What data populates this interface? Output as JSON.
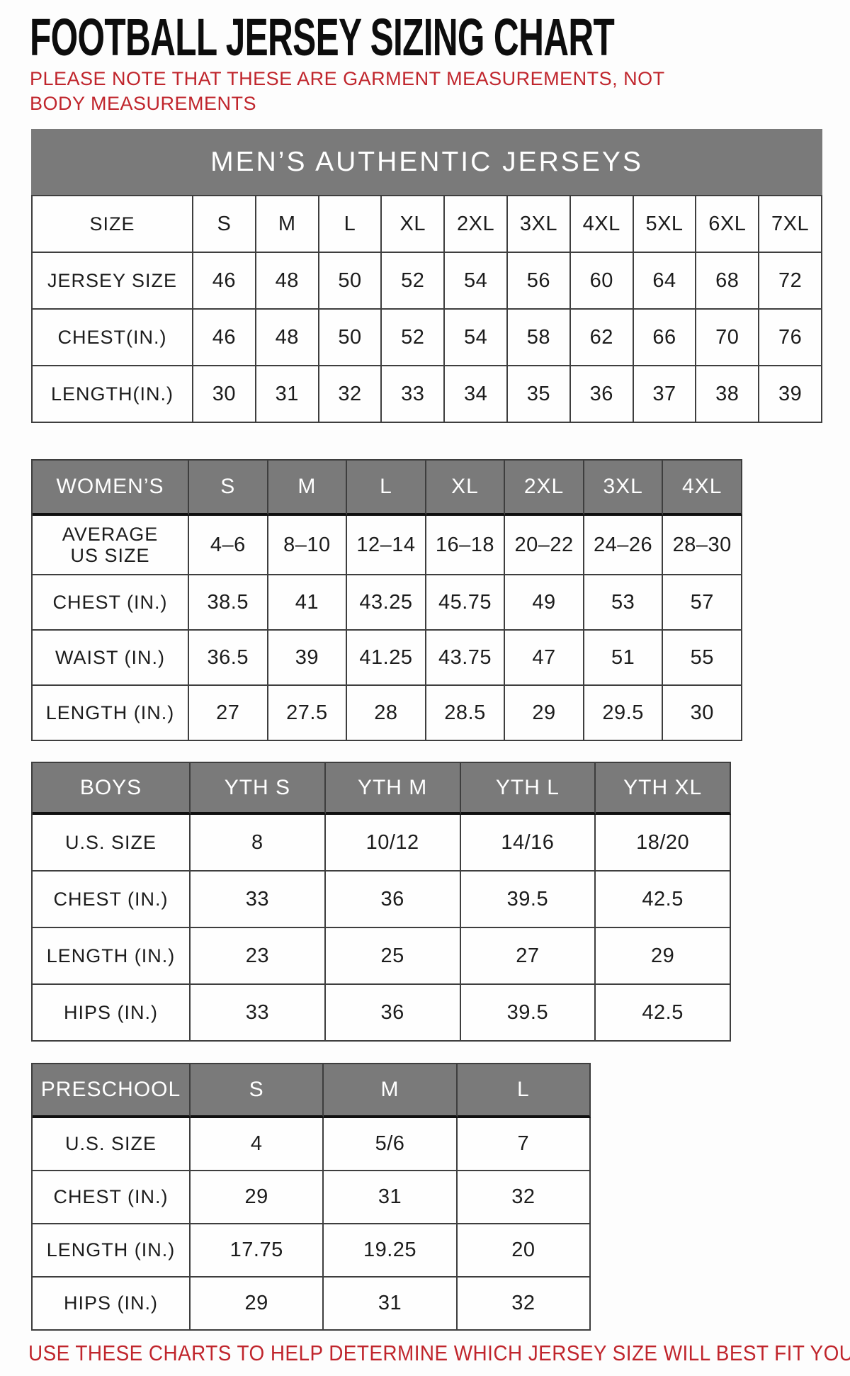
{
  "page": {
    "title": "FOOTBALL JERSEY SIZING CHART",
    "note": "PLEASE NOTE THAT THESE ARE GARMENT MEASUREMENTS, NOT BODY MEASUREMENTS",
    "footer": "USE THESE CHARTS TO HELP DETERMINE WHICH JERSEY SIZE WILL BEST FIT YOU."
  },
  "colors": {
    "accent_red": "#c0252c",
    "header_gray": "#7a7a7a",
    "border_dark": "#3e3e3e",
    "header_underline": "#101010",
    "text": "#1c1c1c"
  },
  "tables": {
    "mens": {
      "banner": "MEN’S AUTHENTIC JERSEYS",
      "rows": [
        [
          "SIZE",
          "S",
          "M",
          "L",
          "XL",
          "2XL",
          "3XL",
          "4XL",
          "5XL",
          "6XL",
          "7XL"
        ],
        [
          "JERSEY SIZE",
          "46",
          "48",
          "50",
          "52",
          "54",
          "56",
          "60",
          "64",
          "68",
          "72"
        ],
        [
          "CHEST(IN.)",
          "46",
          "48",
          "50",
          "52",
          "54",
          "58",
          "62",
          "66",
          "70",
          "76"
        ],
        [
          "LENGTH(IN.)",
          "30",
          "31",
          "32",
          "33",
          "34",
          "35",
          "36",
          "37",
          "38",
          "39"
        ]
      ]
    },
    "womens": {
      "header": [
        "WOMEN’S",
        "S",
        "M",
        "L",
        "XL",
        "2XL",
        "3XL",
        "4XL"
      ],
      "rows": [
        [
          "AVERAGE\nUS SIZE",
          "4–6",
          "8–10",
          "12–14",
          "16–18",
          "20–22",
          "24–26",
          "28–30"
        ],
        [
          "CHEST (IN.)",
          "38.5",
          "41",
          "43.25",
          "45.75",
          "49",
          "53",
          "57"
        ],
        [
          "WAIST (IN.)",
          "36.5",
          "39",
          "41.25",
          "43.75",
          "47",
          "51",
          "55"
        ],
        [
          "LENGTH (IN.)",
          "27",
          "27.5",
          "28",
          "28.5",
          "29",
          "29.5",
          "30"
        ]
      ]
    },
    "boys": {
      "header": [
        "BOYS",
        "YTH S",
        "YTH M",
        "YTH L",
        "YTH XL"
      ],
      "rows": [
        [
          "U.S. SIZE",
          "8",
          "10/12",
          "14/16",
          "18/20"
        ],
        [
          "CHEST (IN.)",
          "33",
          "36",
          "39.5",
          "42.5"
        ],
        [
          "LENGTH (IN.)",
          "23",
          "25",
          "27",
          "29"
        ],
        [
          "HIPS (IN.)",
          "33",
          "36",
          "39.5",
          "42.5"
        ]
      ]
    },
    "preschool": {
      "header": [
        "PRESCHOOL",
        "S",
        "M",
        "L"
      ],
      "rows": [
        [
          "U.S. SIZE",
          "4",
          "5/6",
          "7"
        ],
        [
          "CHEST (IN.)",
          "29",
          "31",
          "32"
        ],
        [
          "LENGTH (IN.)",
          "17.75",
          "19.25",
          "20"
        ],
        [
          "HIPS (IN.)",
          "29",
          "31",
          "32"
        ]
      ]
    }
  }
}
